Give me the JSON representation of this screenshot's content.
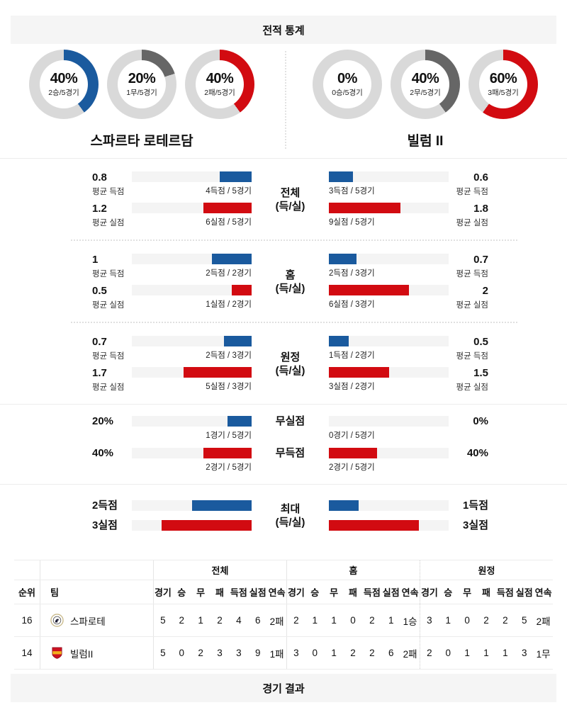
{
  "colors": {
    "blue": "#1a5a9e",
    "red": "#d20b11",
    "gray_dark": "#666666",
    "donut_track": "#d9d9d9",
    "bar_track": "#f4f4f4",
    "header_bg": "#f5f5f5"
  },
  "header": {
    "title": "전적 통계"
  },
  "footer": {
    "title": "경기 결과"
  },
  "teams": {
    "home": {
      "name": "스파르타 로테르담",
      "donuts": [
        {
          "pct": 40,
          "label": "40%",
          "sub": "2승/5경기",
          "color": "blue"
        },
        {
          "pct": 20,
          "label": "20%",
          "sub": "1무/5경기",
          "color": "gray_dark"
        },
        {
          "pct": 40,
          "label": "40%",
          "sub": "2패/5경기",
          "color": "red"
        }
      ]
    },
    "away": {
      "name": "빌럼 II",
      "donuts": [
        {
          "pct": 0,
          "label": "0%",
          "sub": "0승/5경기",
          "color": "blue"
        },
        {
          "pct": 40,
          "label": "40%",
          "sub": "2무/5경기",
          "color": "gray_dark"
        },
        {
          "pct": 60,
          "label": "60%",
          "sub": "3패/5경기",
          "color": "red"
        }
      ]
    }
  },
  "sections": [
    {
      "center_line1": "전체",
      "center_line2": "(득/실)",
      "rows": [
        {
          "left": {
            "value": "0.8",
            "caption": "평균 득점",
            "bar_label": "4득점 / 5경기",
            "width": "26.7%",
            "color": "blue"
          },
          "right": {
            "value": "0.6",
            "caption": "평균 득점",
            "bar_label": "3득점 / 5경기",
            "width": "20%",
            "color": "blue"
          }
        },
        {
          "left": {
            "value": "1.2",
            "caption": "평균 실점",
            "bar_label": "6실점 / 5경기",
            "width": "40%",
            "color": "red"
          },
          "right": {
            "value": "1.8",
            "caption": "평균 실점",
            "bar_label": "9실점 / 5경기",
            "width": "60%",
            "color": "red"
          }
        }
      ]
    },
    {
      "center_line1": "홈",
      "center_line2": "(득/실)",
      "rows": [
        {
          "left": {
            "value": "1",
            "caption": "평균 득점",
            "bar_label": "2득점 / 2경기",
            "width": "33.3%",
            "color": "blue"
          },
          "right": {
            "value": "0.7",
            "caption": "평균 득점",
            "bar_label": "2득점 / 3경기",
            "width": "23.3%",
            "color": "blue"
          }
        },
        {
          "left": {
            "value": "0.5",
            "caption": "평균 실점",
            "bar_label": "1실점 / 2경기",
            "width": "16.7%",
            "color": "red"
          },
          "right": {
            "value": "2",
            "caption": "평균 실점",
            "bar_label": "6실점 / 3경기",
            "width": "66.7%",
            "color": "red"
          }
        }
      ]
    },
    {
      "center_line1": "원정",
      "center_line2": "(득/실)",
      "rows": [
        {
          "left": {
            "value": "0.7",
            "caption": "평균 득점",
            "bar_label": "2득점 / 3경기",
            "width": "23.3%",
            "color": "blue"
          },
          "right": {
            "value": "0.5",
            "caption": "평균 득점",
            "bar_label": "1득점 / 2경기",
            "width": "16.7%",
            "color": "blue"
          }
        },
        {
          "left": {
            "value": "1.7",
            "caption": "평균 실점",
            "bar_label": "5실점 / 3경기",
            "width": "56.7%",
            "color": "red"
          },
          "right": {
            "value": "1.5",
            "caption": "평균 실점",
            "bar_label": "3실점 / 2경기",
            "width": "50%",
            "color": "red"
          }
        }
      ]
    },
    {
      "rows": [
        {
          "center": "무실점",
          "left": {
            "value": "20%",
            "bar_label": "1경기 / 5경기",
            "width": "20%",
            "color": "blue"
          },
          "right": {
            "value": "0%",
            "bar_label": "0경기 / 5경기",
            "width": "0%",
            "color": "blue"
          }
        },
        {
          "center": "무득점",
          "left": {
            "value": "40%",
            "bar_label": "2경기 / 5경기",
            "width": "40%",
            "color": "red"
          },
          "right": {
            "value": "40%",
            "bar_label": "2경기 / 5경기",
            "width": "40%",
            "color": "red"
          }
        }
      ]
    },
    {
      "center_line1": "최대",
      "center_line2": "(득/실)",
      "rows": [
        {
          "left": {
            "value": "2득점",
            "width": "50%",
            "color": "blue"
          },
          "right": {
            "value": "1득점",
            "width": "25%",
            "color": "blue"
          }
        },
        {
          "left": {
            "value": "3실점",
            "width": "75%",
            "color": "red"
          },
          "right": {
            "value": "3실점",
            "width": "75%",
            "color": "red"
          }
        }
      ]
    }
  ],
  "table": {
    "group_headers": [
      "전체",
      "홈",
      "원정"
    ],
    "rank_header": "순위",
    "team_header": "팀",
    "stat_headers": [
      "경기",
      "승",
      "무",
      "패",
      "득점",
      "실점",
      "연속"
    ],
    "rows": [
      {
        "rank": "16",
        "team": "스파로테",
        "all": [
          "5",
          "2",
          "1",
          "2",
          "4",
          "6",
          "2패"
        ],
        "home": [
          "2",
          "1",
          "1",
          "0",
          "2",
          "1",
          "1승"
        ],
        "away": [
          "3",
          "1",
          "0",
          "2",
          "2",
          "5",
          "2패"
        ]
      },
      {
        "rank": "14",
        "team": "빌럼II",
        "all": [
          "5",
          "0",
          "2",
          "3",
          "3",
          "9",
          "1패"
        ],
        "home": [
          "3",
          "0",
          "1",
          "2",
          "2",
          "6",
          "2패"
        ],
        "away": [
          "2",
          "0",
          "1",
          "1",
          "1",
          "3",
          "1무"
        ]
      }
    ]
  },
  "chart_data": [
    {
      "type": "pie",
      "title": "스파르타 로테르담 승/무/패 (최근 5경기)",
      "categories": [
        "승",
        "무",
        "패"
      ],
      "values": [
        40,
        20,
        40
      ],
      "labels": [
        "2승/5경기",
        "1무/5경기",
        "2패/5경기"
      ]
    },
    {
      "type": "pie",
      "title": "빌럼 II 승/무/패 (최근 5경기)",
      "categories": [
        "승",
        "무",
        "패"
      ],
      "values": [
        0,
        40,
        60
      ],
      "labels": [
        "0승/5경기",
        "2무/5경기",
        "3패/5경기"
      ]
    },
    {
      "type": "bar",
      "title": "평균 득점/실점 비교 (막대 스케일 최대 3)",
      "categories": [
        "전체 평균득점",
        "전체 평균실점",
        "홈 평균득점",
        "홈 평균실점",
        "원정 평균득점",
        "원정 평균실점"
      ],
      "series": [
        {
          "name": "스파르타 로테르담",
          "values": [
            0.8,
            1.2,
            1,
            0.5,
            0.7,
            1.7
          ]
        },
        {
          "name": "빌럼 II",
          "values": [
            0.6,
            1.8,
            0.7,
            2,
            0.5,
            1.5
          ]
        }
      ]
    },
    {
      "type": "bar",
      "title": "무실점/무득점 비율 (%)",
      "categories": [
        "무실점",
        "무득점"
      ],
      "series": [
        {
          "name": "스파르타 로테르담",
          "values": [
            20,
            40
          ]
        },
        {
          "name": "빌럼 II",
          "values": [
            0,
            40
          ]
        }
      ]
    },
    {
      "type": "bar",
      "title": "최대 득점/실점",
      "categories": [
        "최대 득점",
        "최대 실점"
      ],
      "series": [
        {
          "name": "스파르타 로테르담",
          "values": [
            2,
            3
          ]
        },
        {
          "name": "빌럼 II",
          "values": [
            1,
            3
          ]
        }
      ]
    },
    {
      "type": "table",
      "title": "순위표",
      "columns": [
        "순위",
        "팀",
        "전체 경기",
        "전체 승",
        "전체 무",
        "전체 패",
        "전체 득점",
        "전체 실점",
        "전체 연속",
        "홈 경기",
        "홈 승",
        "홈 무",
        "홈 패",
        "홈 득점",
        "홈 실점",
        "홈 연속",
        "원정 경기",
        "원정 승",
        "원정 무",
        "원정 패",
        "원정 득점",
        "원정 실점",
        "원정 연속"
      ],
      "rows": [
        [
          "16",
          "스파로테",
          "5",
          "2",
          "1",
          "2",
          "4",
          "6",
          "2패",
          "2",
          "1",
          "1",
          "0",
          "2",
          "1",
          "1승",
          "3",
          "1",
          "0",
          "2",
          "2",
          "5",
          "2패"
        ],
        [
          "14",
          "빌럼II",
          "5",
          "0",
          "2",
          "3",
          "3",
          "9",
          "1패",
          "3",
          "0",
          "1",
          "2",
          "2",
          "6",
          "2패",
          "2",
          "0",
          "1",
          "1",
          "1",
          "3",
          "1무"
        ]
      ]
    }
  ]
}
